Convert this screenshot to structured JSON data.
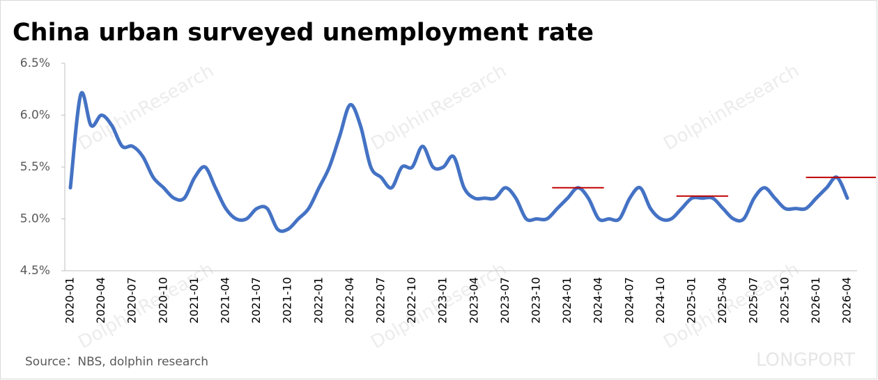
{
  "chart_data": {
    "type": "line",
    "title": "China urban surveyed unemployment rate",
    "source": "Source：NBS, dolphin research",
    "watermark": "DolphinResearch",
    "logo": "LONGPORT",
    "categories": [
      "2020-01",
      null,
      null,
      "2020-04",
      null,
      null,
      "2020-07",
      null,
      null,
      "2020-10",
      null,
      null,
      "2021-01",
      null,
      null,
      "2021-04",
      null,
      null,
      "2021-07",
      null,
      null,
      "2021-10",
      null,
      null,
      "2022-01",
      null,
      null,
      "2022-04",
      null,
      null,
      "2022-07",
      null,
      null,
      "2022-10",
      null,
      null,
      "2023-01",
      null,
      null,
      "2023-04",
      null,
      null,
      "2023-07",
      null,
      null,
      "2023-10",
      null,
      null,
      "2024-01",
      null,
      null,
      "2024-04",
      null,
      null,
      "2024-07",
      null,
      null,
      "2024-10",
      null,
      null,
      "2025-01",
      null,
      null,
      "2025-04",
      null,
      null,
      "2025-07",
      null,
      null,
      "2025-10",
      null,
      null,
      "2026-01",
      null,
      null,
      "2026-04"
    ],
    "series": [
      {
        "color": "#4472c4",
        "values": [
          5.3,
          6.2,
          5.9,
          6.0,
          5.9,
          5.7,
          5.7,
          5.6,
          5.4,
          5.3,
          5.2,
          5.2,
          5.4,
          5.5,
          5.3,
          5.1,
          5.0,
          5.0,
          5.1,
          5.1,
          4.9,
          4.9,
          5.0,
          5.1,
          5.3,
          5.5,
          5.8,
          6.1,
          5.9,
          5.5,
          5.4,
          5.3,
          5.5,
          5.5,
          5.7,
          5.5,
          5.5,
          5.6,
          5.3,
          5.2,
          5.2,
          5.2,
          5.3,
          5.2,
          5.0,
          5.0,
          5.0,
          5.1,
          5.2,
          5.3,
          5.2,
          5.0,
          5.0,
          5.0,
          5.2,
          5.3,
          5.1,
          5.0,
          5.0,
          5.1,
          5.2,
          5.2,
          5.2,
          5.1,
          5.0,
          5.0,
          5.2,
          5.3,
          5.2,
          5.1,
          5.1,
          5.1,
          5.2,
          5.3,
          5.4,
          5.2
        ]
      }
    ],
    "reference_lines": [
      {
        "value": 5.3,
        "from": 46.5,
        "to": 51.5,
        "color": "#c00000"
      },
      {
        "value": 5.22,
        "from": 58.5,
        "to": 63.5,
        "color": "#c00000"
      },
      {
        "value": 5.4,
        "from": 71,
        "to": 78,
        "color": "#c00000"
      }
    ],
    "ylim": [
      4.5,
      6.5
    ],
    "yticks": [
      {
        "value": 4.5,
        "label": "4.5%"
      },
      {
        "value": 5.0,
        "label": "5.0%"
      },
      {
        "value": 5.5,
        "label": "5.5%"
      },
      {
        "value": 6.0,
        "label": "6.0%"
      },
      {
        "value": 6.5,
        "label": "6.5%"
      }
    ]
  }
}
